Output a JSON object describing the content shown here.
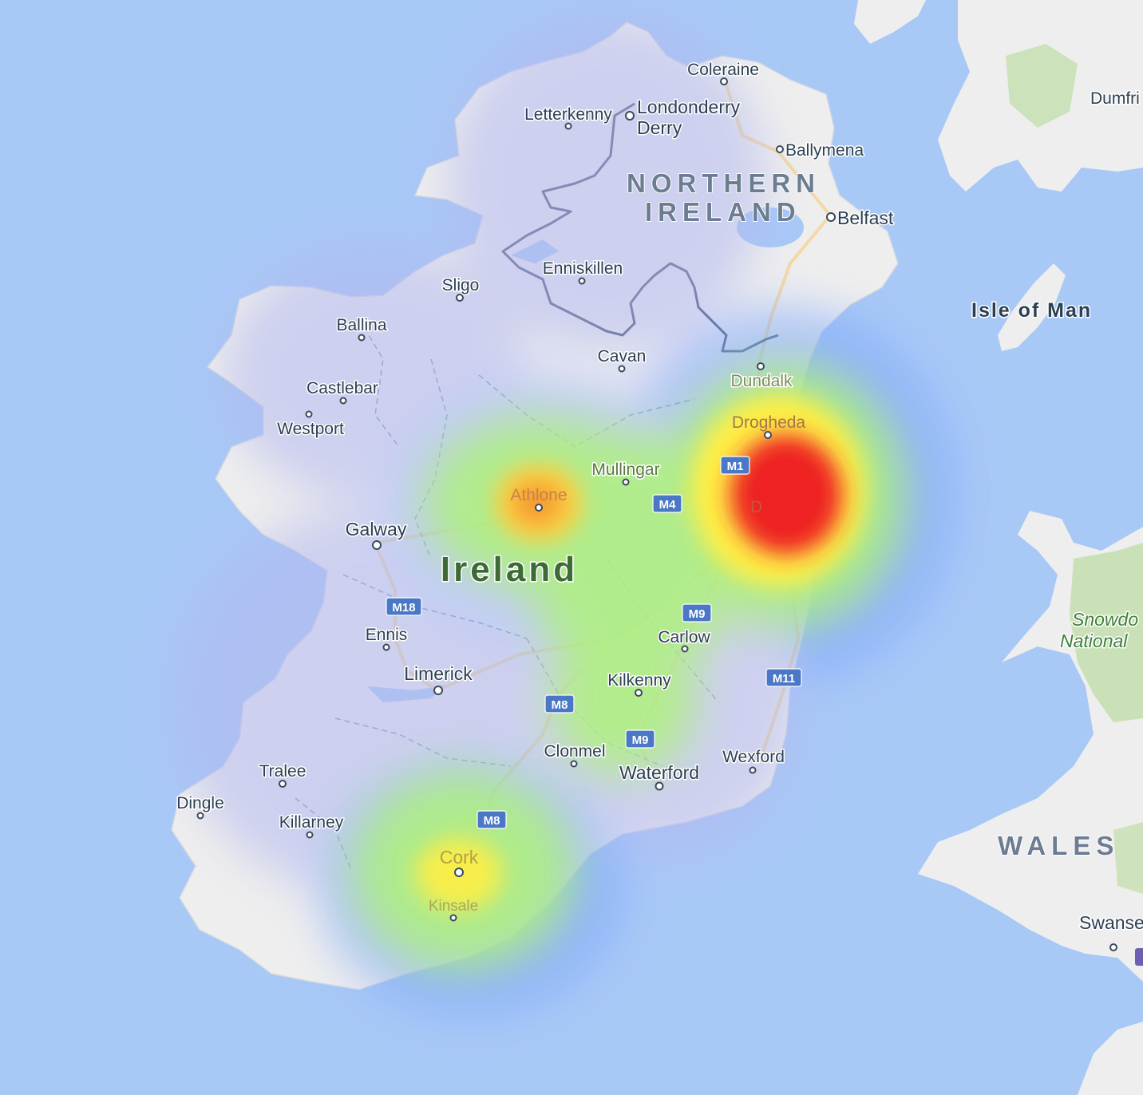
{
  "map": {
    "colors": {
      "sea": "#a8c8f6",
      "land": "#eeeeee",
      "park": "#c5dfb0",
      "border": "#4a5670",
      "shield": "#4a78c6",
      "heat_low": "#7da4ff",
      "heat_mid": "#aef27a",
      "heat_high": "#ffee44",
      "heat_peak": "#ee2222"
    },
    "labels": {
      "coleraine": "Coleraine",
      "letterkenny": "Letterkenny",
      "londonderry": "Londonderry",
      "derry": "Derry",
      "ballymena": "Ballymena",
      "northern": "NORTHERN",
      "ireland_ni": "IRELAND",
      "belfast": "Belfast",
      "isle_of_man": "Isle of Man",
      "dumfries": "Dumfri",
      "enniskillen": "Enniskillen",
      "sligo": "Sligo",
      "ballina": "Ballina",
      "castlebar": "Castlebar",
      "westport": "Westport",
      "cavan": "Cavan",
      "dundalk": "Dundalk",
      "drogheda": "Drogheda",
      "mullingar": "Mullingar",
      "athlone": "Athlone",
      "galway": "Galway",
      "ireland": "Ireland",
      "ennis": "Ennis",
      "carlow": "Carlow",
      "limerick": "Limerick",
      "kilkenny": "Kilkenny",
      "clonmel": "Clonmel",
      "wexford": "Wexford",
      "waterford": "Waterford",
      "tralee": "Tralee",
      "dingle": "Dingle",
      "killarney": "Killarney",
      "cork": "Cork",
      "kinsale": "Kinsale",
      "snowdonia_1": "Snowdo",
      "snowdonia_2": "National",
      "wales": "WALES",
      "swansea": "Swanse",
      "dublin_partial": "D"
    },
    "roads": {
      "m1": "M1",
      "m4": "M4",
      "m18": "M18",
      "m9_north": "M9",
      "m11": "M11",
      "m8_north": "M8",
      "m9_south": "M9",
      "m8_south": "M8"
    },
    "heatmap": [
      {
        "place": "Dublin",
        "intensity": 1.0
      },
      {
        "place": "Athlone",
        "intensity": 0.65
      },
      {
        "place": "Cork",
        "intensity": 0.5
      },
      {
        "place": "Dundalk",
        "intensity": 0.4
      },
      {
        "place": "Mullingar",
        "intensity": 0.35
      },
      {
        "place": "Kilkenny",
        "intensity": 0.3
      }
    ]
  }
}
